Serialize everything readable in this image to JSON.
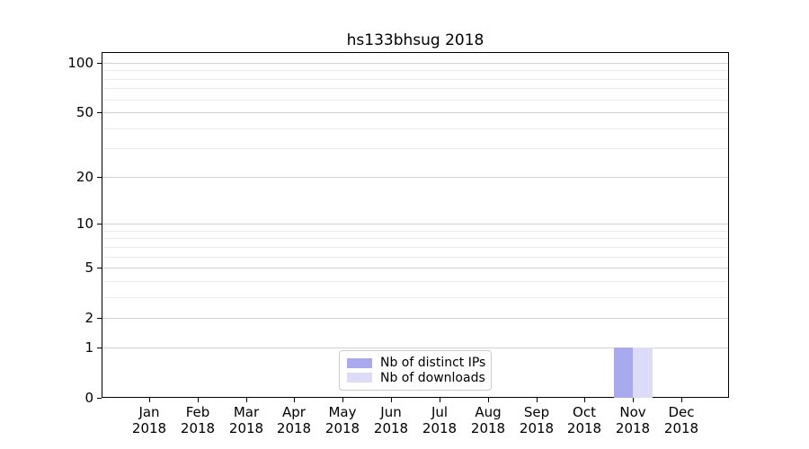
{
  "chart_data": {
    "type": "bar",
    "title": "hs133bhsug 2018",
    "categories": [
      "Jan",
      "Feb",
      "Mar",
      "Apr",
      "May",
      "Jun",
      "Jul",
      "Aug",
      "Sep",
      "Oct",
      "Nov",
      "Dec"
    ],
    "xtick_year": "2018",
    "series": [
      {
        "name": "Nb of distinct IPs",
        "color": "#a9a9f0",
        "values": [
          0,
          0,
          0,
          0,
          0,
          0,
          0,
          0,
          0,
          0,
          1,
          0
        ]
      },
      {
        "name": "Nb of downloads",
        "color": "#dcdcf8",
        "values": [
          0,
          0,
          0,
          0,
          0,
          0,
          0,
          0,
          0,
          0,
          1,
          0
        ]
      }
    ],
    "yscale": "log1p",
    "ylim": [
      0,
      100
    ],
    "yticks": [
      0,
      1,
      2,
      5,
      10,
      20,
      50,
      100
    ],
    "yminorticks": [
      3,
      4,
      6,
      7,
      8,
      9,
      30,
      40,
      60,
      70,
      80,
      90
    ],
    "grid": "both",
    "legend_position": "inside-lower-center",
    "colors": {
      "major_grid": "#d2d2d2",
      "minor_grid": "#ececec",
      "axis": "#000000",
      "legend_border": "#cccccc",
      "background": "#ffffff",
      "text": "#000000"
    }
  }
}
